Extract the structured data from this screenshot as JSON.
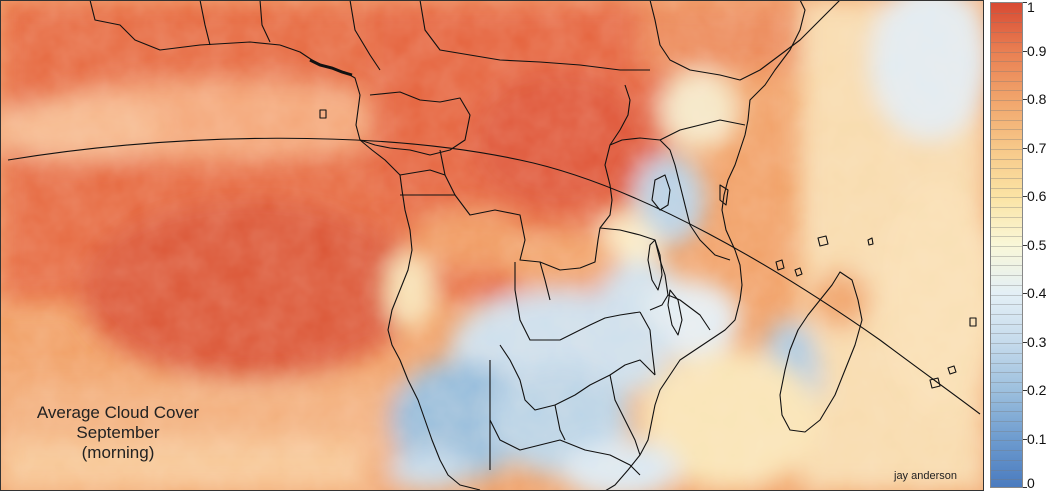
{
  "map": {
    "title_lines": [
      "Average Cloud Cover",
      "September",
      "(morning)"
    ],
    "credit": "jay anderson",
    "colors": {
      "ocean_overcast": "#e9734a",
      "deep_overcast": "#dd5838",
      "moderate": "#f4b27a",
      "light": "#fae9b6",
      "clear": "#bcd6ea",
      "very_clear": "#94bcdc",
      "border_line": "#111111"
    }
  },
  "scale": {
    "min": 0,
    "max": 1,
    "labels": [
      "1",
      "0.9",
      "0.8",
      "0.7",
      "0.6",
      "0.5",
      "0.4",
      "0.3",
      "0.2",
      "0.1",
      "0"
    ],
    "label_values": [
      1,
      0.9,
      0.8,
      0.7,
      0.6,
      0.5,
      0.4,
      0.3,
      0.2,
      0.1,
      0
    ]
  }
}
